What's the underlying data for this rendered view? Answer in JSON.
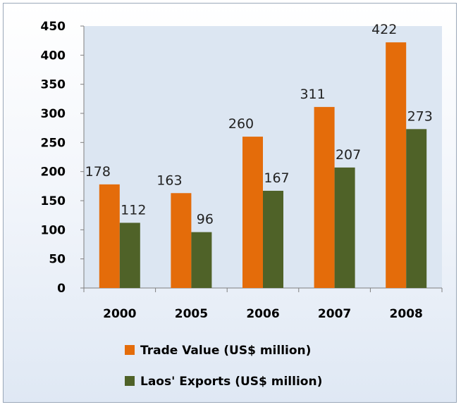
{
  "chart_data": {
    "type": "bar",
    "categories": [
      "2000",
      "2005",
      "2006",
      "2007",
      "2008"
    ],
    "series": [
      {
        "name": "Trade Value (US$ million)",
        "values": [
          178,
          163,
          260,
          311,
          422
        ],
        "color": "#E46C0A"
      },
      {
        "name": "Laos' Exports (US$ million)",
        "values": [
          112,
          96,
          167,
          207,
          273
        ],
        "color": "#4F6228"
      }
    ],
    "ylim": [
      0,
      450
    ],
    "yticks": [
      0,
      50,
      100,
      150,
      200,
      250,
      300,
      350,
      400,
      450
    ],
    "grid": false,
    "legend_position": "bottom",
    "plot_background": "#DCE6F2"
  }
}
